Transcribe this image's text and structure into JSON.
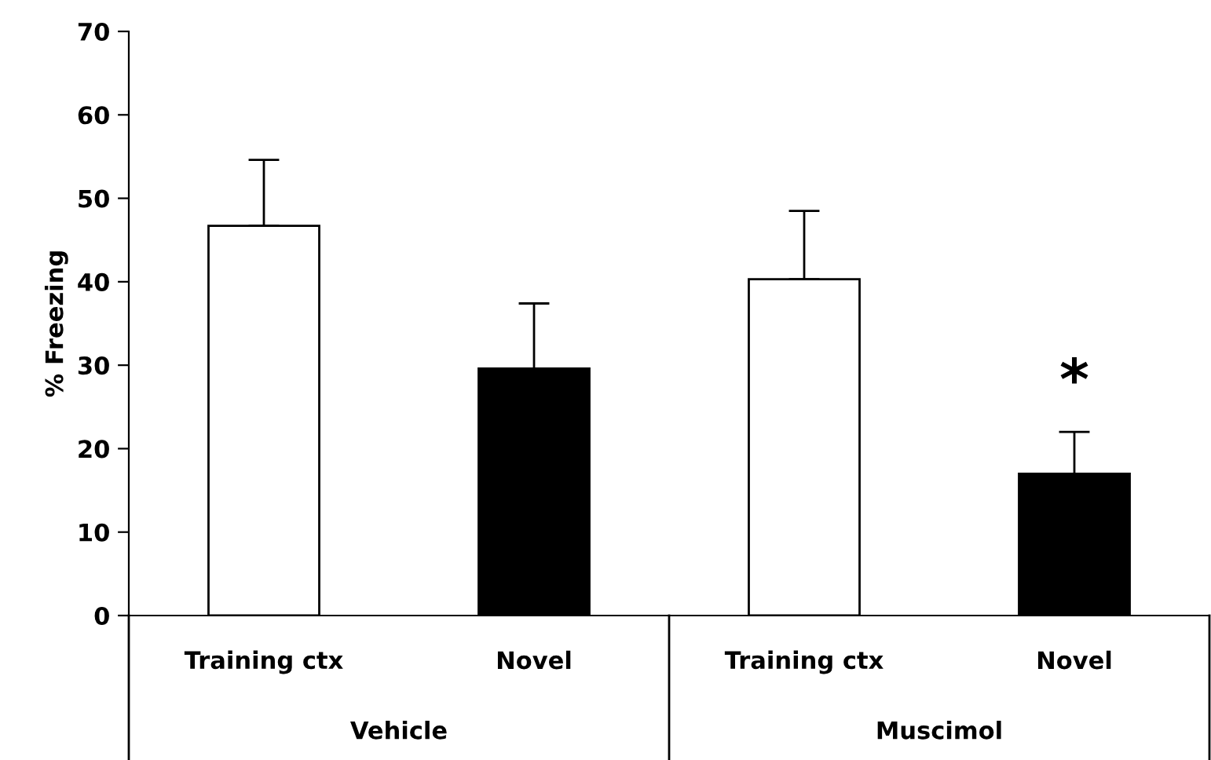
{
  "chart_data": {
    "type": "bar",
    "ylabel": "% Freezing",
    "categories": [
      "Training ctx",
      "Novel",
      "Training ctx",
      "Novel"
    ],
    "values": [
      46.7,
      29.6,
      40.3,
      17.0
    ],
    "colors": [
      "#ffffff",
      "#000000",
      "#ffffff",
      "#000000"
    ],
    "errors": [
      [
        46.7,
        54.6
      ],
      [
        29.6,
        37.4
      ],
      [
        40.3,
        48.5
      ],
      [
        17.0,
        22.0
      ]
    ],
    "ylim": [
      0,
      70
    ],
    "yticks": [
      0,
      10,
      20,
      30,
      40,
      50,
      60,
      70
    ],
    "grid": false,
    "legend": false,
    "annotations": [
      "*",
      "Vehicle",
      "Muscimol"
    ]
  }
}
